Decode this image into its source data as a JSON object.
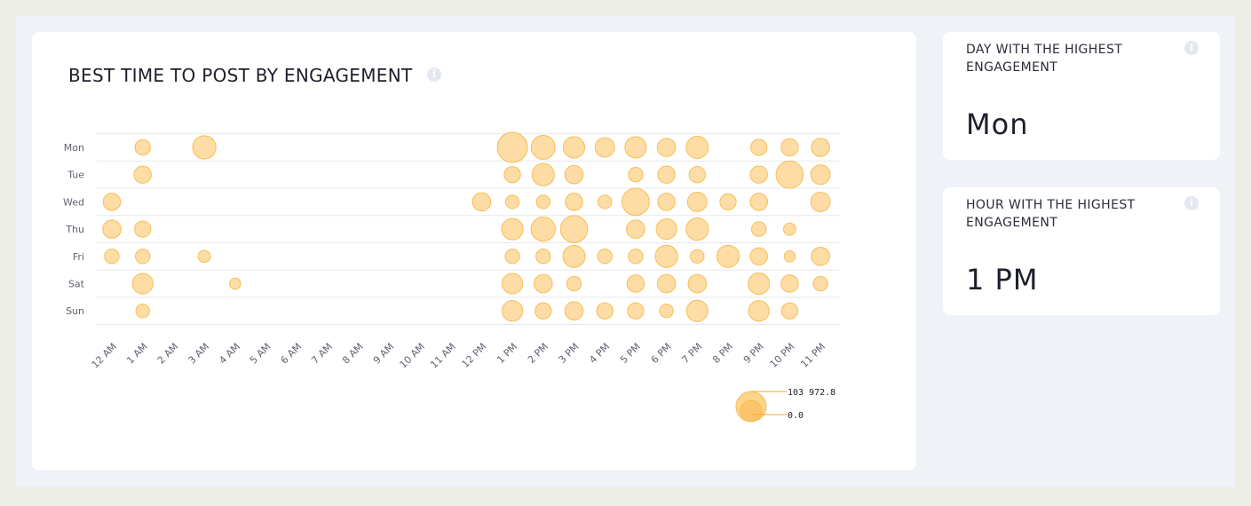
{
  "chart_data": {
    "type": "bubble",
    "title": "BEST TIME TO POST BY ENGAGEMENT",
    "y_categories": [
      "Mon",
      "Tue",
      "Wed",
      "Thu",
      "Fri",
      "Sat",
      "Sun"
    ],
    "x_categories": [
      "12 AM",
      "1 AM",
      "2 AM",
      "3 AM",
      "4 AM",
      "5 AM",
      "6 AM",
      "7 AM",
      "8 AM",
      "9 AM",
      "10 AM",
      "11 AM",
      "12 PM",
      "1 PM",
      "2 PM",
      "3 PM",
      "4 PM",
      "5 PM",
      "6 PM",
      "7 PM",
      "8 PM",
      "9 PM",
      "10 PM",
      "11 PM"
    ],
    "points": [
      {
        "day": "Mon",
        "hour": "1 AM",
        "value": 27000
      },
      {
        "day": "Mon",
        "hour": "3 AM",
        "value": 62000
      },
      {
        "day": "Mon",
        "hour": "1 PM",
        "value": 103972.8
      },
      {
        "day": "Mon",
        "hour": "2 PM",
        "value": 65000
      },
      {
        "day": "Mon",
        "hour": "3 PM",
        "value": 52000
      },
      {
        "day": "Mon",
        "hour": "4 PM",
        "value": 43000
      },
      {
        "day": "Mon",
        "hour": "5 PM",
        "value": 52000
      },
      {
        "day": "Mon",
        "hour": "6 PM",
        "value": 38000
      },
      {
        "day": "Mon",
        "hour": "7 PM",
        "value": 56000
      },
      {
        "day": "Mon",
        "hour": "9 PM",
        "value": 30000
      },
      {
        "day": "Mon",
        "hour": "10 PM",
        "value": 34000
      },
      {
        "day": "Mon",
        "hour": "11 PM",
        "value": 38000
      },
      {
        "day": "Tue",
        "hour": "1 AM",
        "value": 34000
      },
      {
        "day": "Tue",
        "hour": "1 PM",
        "value": 30000
      },
      {
        "day": "Tue",
        "hour": "2 PM",
        "value": 57000
      },
      {
        "day": "Tue",
        "hour": "3 PM",
        "value": 38000
      },
      {
        "day": "Tue",
        "hour": "5 PM",
        "value": 24000
      },
      {
        "day": "Tue",
        "hour": "6 PM",
        "value": 34000
      },
      {
        "day": "Tue",
        "hour": "7 PM",
        "value": 30000
      },
      {
        "day": "Tue",
        "hour": "9 PM",
        "value": 34000
      },
      {
        "day": "Tue",
        "hour": "10 PM",
        "value": 85000
      },
      {
        "day": "Tue",
        "hour": "11 PM",
        "value": 43000
      },
      {
        "day": "Wed",
        "hour": "12 AM",
        "value": 34000
      },
      {
        "day": "Wed",
        "hour": "12 PM",
        "value": 38000
      },
      {
        "day": "Wed",
        "hour": "1 PM",
        "value": 21000
      },
      {
        "day": "Wed",
        "hour": "2 PM",
        "value": 21000
      },
      {
        "day": "Wed",
        "hour": "3 PM",
        "value": 34000
      },
      {
        "day": "Wed",
        "hour": "4 PM",
        "value": 21000
      },
      {
        "day": "Wed",
        "hour": "5 PM",
        "value": 85000
      },
      {
        "day": "Wed",
        "hour": "6 PM",
        "value": 34000
      },
      {
        "day": "Wed",
        "hour": "7 PM",
        "value": 43000
      },
      {
        "day": "Wed",
        "hour": "8 PM",
        "value": 30000
      },
      {
        "day": "Wed",
        "hour": "9 PM",
        "value": 34000
      },
      {
        "day": "Wed",
        "hour": "11 PM",
        "value": 43000
      },
      {
        "day": "Thu",
        "hour": "12 AM",
        "value": 38000
      },
      {
        "day": "Thu",
        "hour": "1 AM",
        "value": 30000
      },
      {
        "day": "Thu",
        "hour": "1 PM",
        "value": 52000
      },
      {
        "day": "Thu",
        "hour": "2 PM",
        "value": 67000
      },
      {
        "day": "Thu",
        "hour": "3 PM",
        "value": 84000
      },
      {
        "day": "Thu",
        "hour": "5 PM",
        "value": 38000
      },
      {
        "day": "Thu",
        "hour": "6 PM",
        "value": 48000
      },
      {
        "day": "Thu",
        "hour": "7 PM",
        "value": 57000
      },
      {
        "day": "Thu",
        "hour": "9 PM",
        "value": 24000
      },
      {
        "day": "Thu",
        "hour": "10 PM",
        "value": 17000
      },
      {
        "day": "Fri",
        "hour": "12 AM",
        "value": 24000
      },
      {
        "day": "Fri",
        "hour": "1 AM",
        "value": 24000
      },
      {
        "day": "Fri",
        "hour": "3 AM",
        "value": 17000
      },
      {
        "day": "Fri",
        "hour": "1 PM",
        "value": 24000
      },
      {
        "day": "Fri",
        "hour": "2 PM",
        "value": 24000
      },
      {
        "day": "Fri",
        "hour": "3 PM",
        "value": 56000
      },
      {
        "day": "Fri",
        "hour": "4 PM",
        "value": 24000
      },
      {
        "day": "Fri",
        "hour": "5 PM",
        "value": 24000
      },
      {
        "day": "Fri",
        "hour": "6 PM",
        "value": 57000
      },
      {
        "day": "Fri",
        "hour": "7 PM",
        "value": 21000
      },
      {
        "day": "Fri",
        "hour": "8 PM",
        "value": 57000
      },
      {
        "day": "Fri",
        "hour": "9 PM",
        "value": 34000
      },
      {
        "day": "Fri",
        "hour": "10 PM",
        "value": 14000
      },
      {
        "day": "Fri",
        "hour": "11 PM",
        "value": 38000
      },
      {
        "day": "Sat",
        "hour": "1 AM",
        "value": 48000
      },
      {
        "day": "Sat",
        "hour": "4 AM",
        "value": 14000
      },
      {
        "day": "Sat",
        "hour": "1 PM",
        "value": 48000
      },
      {
        "day": "Sat",
        "hour": "2 PM",
        "value": 38000
      },
      {
        "day": "Sat",
        "hour": "3 PM",
        "value": 24000
      },
      {
        "day": "Sat",
        "hour": "5 PM",
        "value": 34000
      },
      {
        "day": "Sat",
        "hour": "6 PM",
        "value": 38000
      },
      {
        "day": "Sat",
        "hour": "7 PM",
        "value": 38000
      },
      {
        "day": "Sat",
        "hour": "9 PM",
        "value": 52000
      },
      {
        "day": "Sat",
        "hour": "10 PM",
        "value": 34000
      },
      {
        "day": "Sat",
        "hour": "11 PM",
        "value": 24000
      },
      {
        "day": "Sun",
        "hour": "1 AM",
        "value": 21000
      },
      {
        "day": "Sun",
        "hour": "1 PM",
        "value": 48000
      },
      {
        "day": "Sun",
        "hour": "2 PM",
        "value": 30000
      },
      {
        "day": "Sun",
        "hour": "3 PM",
        "value": 38000
      },
      {
        "day": "Sun",
        "hour": "4 PM",
        "value": 30000
      },
      {
        "day": "Sun",
        "hour": "5 PM",
        "value": 30000
      },
      {
        "day": "Sun",
        "hour": "6 PM",
        "value": 21000
      },
      {
        "day": "Sun",
        "hour": "7 PM",
        "value": 52000
      },
      {
        "day": "Sun",
        "hour": "9 PM",
        "value": 48000
      },
      {
        "day": "Sun",
        "hour": "10 PM",
        "value": 30000
      }
    ],
    "size_legend": {
      "max_label": "103 972.8",
      "min_label": "0.0",
      "max_value": 103972.8,
      "min_value": 0
    },
    "bubble_color": "#fdd99b",
    "bubble_stroke": "#f7bd55",
    "grid": true
  },
  "stats": [
    {
      "label": "DAY WITH THE HIGHEST ENGAGEMENT",
      "value": "Mon"
    },
    {
      "label": "HOUR WITH THE HIGHEST ENGAGEMENT",
      "value": "1 PM"
    }
  ],
  "icons": {
    "info": "info-icon"
  },
  "info_glyph": "i"
}
